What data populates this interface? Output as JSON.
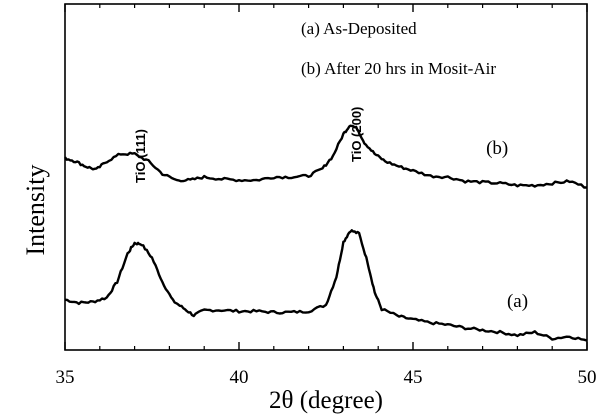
{
  "chart_data": {
    "type": "line",
    "title": "",
    "xlabel": "2θ (degree)",
    "ylabel": "Intensity",
    "xlim": [
      35,
      50
    ],
    "xticks": [
      "35",
      "40",
      "45",
      "50"
    ],
    "yticks_shown": false,
    "grid": false,
    "legend_placement": "top-right",
    "legend": [
      "(a) As-Deposited",
      "(b) After 20 hrs in Mosit-Air"
    ],
    "annotations": [
      {
        "text": "TiO  (111)",
        "x": 37.1
      },
      {
        "text": "TiO (200)",
        "x": 43.3
      }
    ],
    "series": [
      {
        "name": "(a)",
        "label": "(a)",
        "color": "#000000",
        "points": [
          [
            35.0,
            0.13
          ],
          [
            35.4,
            0.1
          ],
          [
            35.8,
            0.11
          ],
          [
            36.2,
            0.15
          ],
          [
            36.5,
            0.3
          ],
          [
            36.8,
            0.57
          ],
          [
            37.0,
            0.67
          ],
          [
            37.2,
            0.66
          ],
          [
            37.5,
            0.53
          ],
          [
            37.8,
            0.3
          ],
          [
            38.1,
            0.12
          ],
          [
            38.4,
            0.05
          ],
          [
            38.7,
            -0.02
          ],
          [
            39.0,
            0.03
          ],
          [
            39.5,
            0.03
          ],
          [
            40.0,
            0.02
          ],
          [
            40.5,
            0.02
          ],
          [
            41.0,
            0.01
          ],
          [
            41.5,
            0.01
          ],
          [
            42.0,
            0.02
          ],
          [
            42.5,
            0.08
          ],
          [
            42.8,
            0.35
          ],
          [
            43.0,
            0.68
          ],
          [
            43.2,
            0.79
          ],
          [
            43.45,
            0.76
          ],
          [
            43.7,
            0.48
          ],
          [
            43.9,
            0.2
          ],
          [
            44.1,
            0.04
          ],
          [
            44.6,
            -0.03
          ],
          [
            45.0,
            -0.06
          ],
          [
            45.5,
            -0.09
          ],
          [
            46.0,
            -0.11
          ],
          [
            46.5,
            -0.14
          ],
          [
            47.0,
            -0.16
          ],
          [
            47.5,
            -0.18
          ],
          [
            48.0,
            -0.21
          ],
          [
            48.5,
            -0.18
          ],
          [
            49.0,
            -0.24
          ],
          [
            49.5,
            -0.22
          ],
          [
            50.0,
            -0.26
          ]
        ]
      },
      {
        "name": "(b)",
        "label": "(b)",
        "color": "#000000",
        "points": [
          [
            35.0,
            1.48
          ],
          [
            35.3,
            1.45
          ],
          [
            35.6,
            1.4
          ],
          [
            35.9,
            1.37
          ],
          [
            36.2,
            1.45
          ],
          [
            36.6,
            1.52
          ],
          [
            37.0,
            1.52
          ],
          [
            37.4,
            1.45
          ],
          [
            37.8,
            1.33
          ],
          [
            38.2,
            1.27
          ],
          [
            38.6,
            1.27
          ],
          [
            39.0,
            1.3
          ],
          [
            39.5,
            1.28
          ],
          [
            40.0,
            1.27
          ],
          [
            40.5,
            1.27
          ],
          [
            41.0,
            1.3
          ],
          [
            41.5,
            1.3
          ],
          [
            42.0,
            1.31
          ],
          [
            42.4,
            1.38
          ],
          [
            42.7,
            1.5
          ],
          [
            43.0,
            1.71
          ],
          [
            43.2,
            1.8
          ],
          [
            43.4,
            1.76
          ],
          [
            43.6,
            1.63
          ],
          [
            43.9,
            1.52
          ],
          [
            44.2,
            1.45
          ],
          [
            44.6,
            1.4
          ],
          [
            45.0,
            1.36
          ],
          [
            45.5,
            1.31
          ],
          [
            46.0,
            1.3
          ],
          [
            46.5,
            1.26
          ],
          [
            47.0,
            1.25
          ],
          [
            47.5,
            1.24
          ],
          [
            48.0,
            1.22
          ],
          [
            48.5,
            1.22
          ],
          [
            49.0,
            1.24
          ],
          [
            49.5,
            1.26
          ],
          [
            50.0,
            1.2
          ]
        ]
      }
    ]
  }
}
